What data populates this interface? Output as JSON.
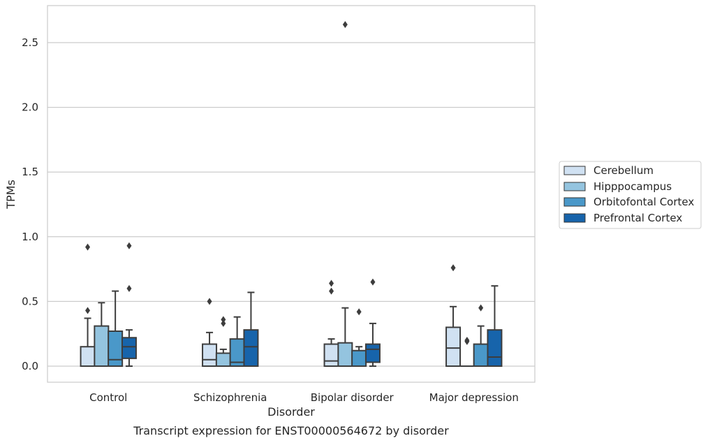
{
  "chart_data": {
    "type": "box",
    "title": "Transcript expression for ENST00000564672 by disorder",
    "xlabel": "Disorder",
    "ylabel": "TPMs",
    "ylim": [
      -0.13,
      2.78
    ],
    "yticks": [
      "0.0",
      "0.5",
      "1.0",
      "1.5",
      "2.0",
      "2.5"
    ],
    "ytick_values": [
      0.0,
      0.5,
      1.0,
      1.5,
      2.0,
      2.5
    ],
    "grid": true,
    "legend_placement": "right",
    "categories": [
      "Control",
      "Schizophrenia",
      "Bipolar disorder",
      "Major depression"
    ],
    "series": [
      {
        "name": "Cerebellum",
        "color": "#d0e1f2",
        "boxes": [
          {
            "q1": 0.0,
            "median": 0.0,
            "q3": 0.15,
            "whisker_low": 0.0,
            "whisker_high": 0.37,
            "outliers": [
              0.43,
              0.92
            ]
          },
          {
            "q1": 0.0,
            "median": 0.05,
            "q3": 0.17,
            "whisker_low": 0.0,
            "whisker_high": 0.26,
            "outliers": [
              0.5
            ]
          },
          {
            "q1": 0.0,
            "median": 0.04,
            "q3": 0.17,
            "whisker_low": 0.0,
            "whisker_high": 0.21,
            "outliers": [
              0.58,
              0.64
            ]
          },
          {
            "q1": 0.0,
            "median": 0.14,
            "q3": 0.3,
            "whisker_low": 0.0,
            "whisker_high": 0.46,
            "outliers": [
              0.76
            ]
          }
        ]
      },
      {
        "name": "Hipppocampus",
        "color": "#94c4df",
        "boxes": [
          {
            "q1": 0.0,
            "median": 0.0,
            "q3": 0.31,
            "whisker_low": 0.0,
            "whisker_high": 0.49,
            "outliers": []
          },
          {
            "q1": 0.0,
            "median": 0.0,
            "q3": 0.1,
            "whisker_low": 0.0,
            "whisker_high": 0.13,
            "outliers": [
              0.33,
              0.36
            ]
          },
          {
            "q1": 0.0,
            "median": 0.0,
            "q3": 0.18,
            "whisker_low": 0.0,
            "whisker_high": 0.45,
            "outliers": [
              2.64
            ]
          },
          {
            "q1": 0.0,
            "median": 0.0,
            "q3": 0.0,
            "whisker_low": 0.0,
            "whisker_high": 0.0,
            "outliers": [
              0.19,
              0.2
            ]
          }
        ]
      },
      {
        "name": "Orbitofontal Cortex",
        "color": "#4a98c9",
        "boxes": [
          {
            "q1": 0.0,
            "median": 0.05,
            "q3": 0.27,
            "whisker_low": 0.0,
            "whisker_high": 0.58,
            "outliers": []
          },
          {
            "q1": 0.0,
            "median": 0.03,
            "q3": 0.21,
            "whisker_low": 0.0,
            "whisker_high": 0.38,
            "outliers": []
          },
          {
            "q1": 0.0,
            "median": 0.0,
            "q3": 0.12,
            "whisker_low": 0.0,
            "whisker_high": 0.15,
            "outliers": [
              0.42
            ]
          },
          {
            "q1": 0.0,
            "median": 0.0,
            "q3": 0.17,
            "whisker_low": 0.0,
            "whisker_high": 0.31,
            "outliers": [
              0.45
            ]
          }
        ]
      },
      {
        "name": "Prefrontal Cortex",
        "color": "#1764ab",
        "boxes": [
          {
            "q1": 0.06,
            "median": 0.15,
            "q3": 0.22,
            "whisker_low": 0.0,
            "whisker_high": 0.28,
            "outliers": [
              0.6,
              0.93
            ]
          },
          {
            "q1": 0.0,
            "median": 0.15,
            "q3": 0.28,
            "whisker_low": 0.0,
            "whisker_high": 0.57,
            "outliers": []
          },
          {
            "q1": 0.03,
            "median": 0.13,
            "q3": 0.17,
            "whisker_low": 0.0,
            "whisker_high": 0.33,
            "outliers": [
              0.65
            ]
          },
          {
            "q1": 0.0,
            "median": 0.07,
            "q3": 0.28,
            "whisker_low": 0.0,
            "whisker_high": 0.62,
            "outliers": []
          }
        ]
      }
    ]
  }
}
